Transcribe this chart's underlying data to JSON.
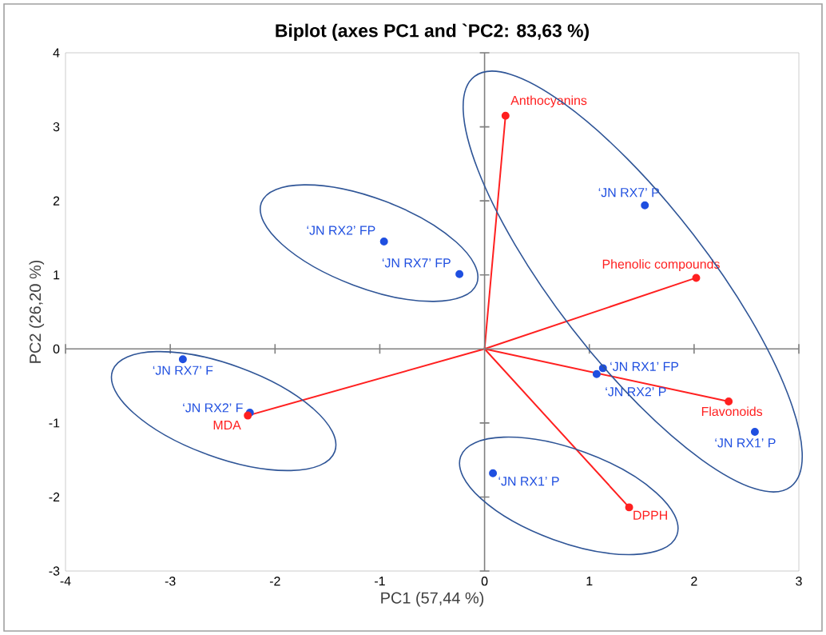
{
  "chart_data": {
    "type": "scatter",
    "title": "Biplot (axes PC1 and `PC2: 83,63 %)",
    "xlabel": "PC1 (57,44 %)",
    "ylabel": "PC2 (26,20 %)",
    "xlim": [
      -4,
      3
    ],
    "ylim": [
      -3,
      4
    ],
    "xticks": [
      -4,
      -3,
      -2,
      -1,
      0,
      1,
      2,
      3
    ],
    "yticks": [
      -3,
      -2,
      -1,
      0,
      1,
      2,
      3,
      4
    ],
    "series": [
      {
        "color": "#1f4fe0",
        "marker": "circle",
        "x": [
          1.53,
          -0.96,
          -0.24,
          -2.88,
          -2.24,
          1.13,
          1.07,
          2.58,
          0.08
        ],
        "values": [
          1.94,
          1.45,
          1.01,
          -0.14,
          -0.86,
          -0.26,
          -0.34,
          -1.12,
          -1.68
        ],
        "value_labels": [
          "‘JN RX7’ P",
          "‘JN RX2’ FP",
          "‘JN RX7’ FP",
          "‘JN RX7’ F",
          "‘JN RX2’ F",
          "‘JN RX1’ FP",
          "‘JN RX2’ P",
          "‘JN RX1’ P",
          "‘JN RX1’ P"
        ]
      },
      {
        "type": "line",
        "color": "#ff2020",
        "marker": "none",
        "line_style": "solid",
        "x": [
          0,
          0.2,
          0,
          2.02,
          0,
          2.33,
          0,
          1.38,
          0,
          -2.26
        ],
        "values": [
          0,
          3.15,
          0,
          0.96,
          0,
          -0.71,
          0,
          -2.14,
          0,
          -0.9
        ]
      },
      {
        "color": "#ff2020",
        "marker": "circle",
        "x": [
          0.2,
          2.02,
          2.33,
          1.38,
          -2.26
        ],
        "values": [
          3.15,
          0.96,
          -0.71,
          -2.14,
          -0.9
        ],
        "value_labels": [
          "Anthocyanins",
          "Phenolic compounds",
          "Flavonoids",
          "DPPH",
          "MDA"
        ]
      }
    ]
  }
}
